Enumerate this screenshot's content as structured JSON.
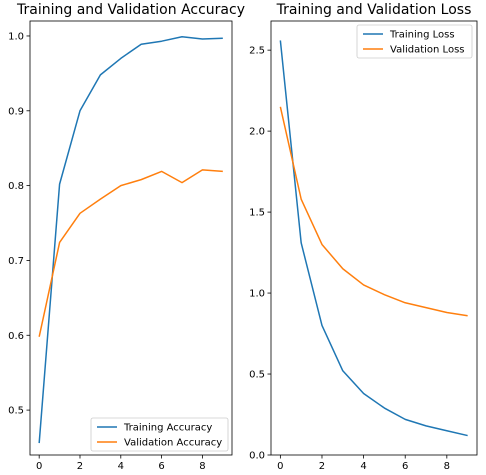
{
  "chart_data": [
    {
      "type": "line",
      "title": "Training and Validation Accuracy",
      "xlabel": "",
      "ylabel": "",
      "xlim": [
        -0.45,
        9.45
      ],
      "ylim": [
        0.44,
        1.02
      ],
      "xticks": [
        0,
        2,
        4,
        6,
        8
      ],
      "yticks": [
        0.5,
        0.6,
        0.7,
        0.8,
        0.9,
        1.0
      ],
      "ytick_labels": [
        "0.5",
        "0.6",
        "0.7",
        "0.8",
        "0.9",
        "1.0"
      ],
      "legend_position": "lower-right",
      "x": [
        0,
        1,
        2,
        3,
        4,
        5,
        6,
        7,
        8,
        9
      ],
      "series": [
        {
          "name": "Training Accuracy",
          "color": "#1f77b4",
          "values": [
            0.456,
            0.802,
            0.9,
            0.948,
            0.97,
            0.989,
            0.993,
            0.999,
            0.996,
            0.997
          ]
        },
        {
          "name": "Validation Accuracy",
          "color": "#ff7f0e",
          "values": [
            0.598,
            0.724,
            0.763,
            0.782,
            0.8,
            0.808,
            0.819,
            0.804,
            0.821,
            0.819
          ]
        }
      ]
    },
    {
      "type": "line",
      "title": "Training and Validation Loss",
      "xlabel": "",
      "ylabel": "",
      "xlim": [
        -0.45,
        9.45
      ],
      "ylim": [
        0.0,
        2.68
      ],
      "xticks": [
        0,
        2,
        4,
        6,
        8
      ],
      "yticks": [
        0.0,
        0.5,
        1.0,
        1.5,
        2.0,
        2.5
      ],
      "ytick_labels": [
        "0.0",
        "0.5",
        "1.0",
        "1.5",
        "2.0",
        "2.5"
      ],
      "legend_position": "upper-right",
      "x": [
        0,
        1,
        2,
        3,
        4,
        5,
        6,
        7,
        8,
        9
      ],
      "series": [
        {
          "name": "Training Loss",
          "color": "#1f77b4",
          "values": [
            2.56,
            1.31,
            0.8,
            0.52,
            0.38,
            0.29,
            0.22,
            0.18,
            0.15,
            0.12
          ]
        },
        {
          "name": "Validation Loss",
          "color": "#ff7f0e",
          "values": [
            2.15,
            1.58,
            1.3,
            1.15,
            1.05,
            0.99,
            0.94,
            0.91,
            0.88,
            0.86
          ]
        }
      ]
    }
  ]
}
